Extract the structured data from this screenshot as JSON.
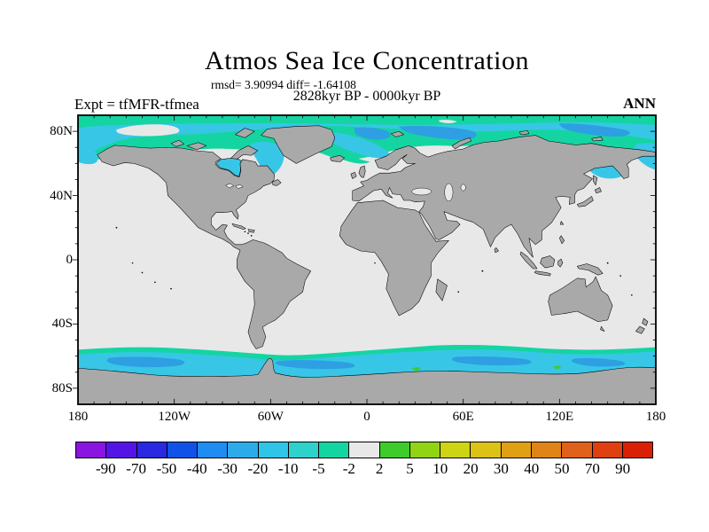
{
  "title": "Atmos Sea Ice Concentration",
  "stats_line": "rmsd= 3.90994 diff= -1.64108",
  "period_line": "2828kyr BP - 0000kyr BP",
  "experiment_label": "Expt = tfMFR-tfmea",
  "season_label": "ANN",
  "map": {
    "lat_tick_labels": [
      "80N",
      "40N",
      "0",
      "40S",
      "80S"
    ],
    "lat_tick_values": [
      80,
      40,
      0,
      -40,
      -80
    ],
    "lon_tick_labels": [
      "180",
      "120W",
      "60W",
      "0",
      "60E",
      "120E",
      "180"
    ],
    "lon_tick_values": [
      -180,
      -120,
      -60,
      0,
      60,
      120,
      180
    ],
    "land_color": "#a9a9a9",
    "no_change_color": "#e8e8e8",
    "decrease_weak_color": "#14d5a2",
    "decrease_moderate_color": "#38c6e6",
    "decrease_strong_color": "#2e9fe2"
  },
  "colorbar": {
    "tick_labels": [
      "-90",
      "-70",
      "-50",
      "-40",
      "-30",
      "-20",
      "-10",
      "-5",
      "-2",
      "2",
      "5",
      "10",
      "20",
      "30",
      "40",
      "50",
      "70",
      "90"
    ],
    "colors": [
      "#8a14e0",
      "#5414e6",
      "#2a28e0",
      "#0f52e8",
      "#1e8cf0",
      "#2dabe8",
      "#30c5e8",
      "#2ed2cd",
      "#14d5a2",
      "#e8e8e8",
      "#3ecc2a",
      "#90d414",
      "#ccd414",
      "#dcc214",
      "#e0a014",
      "#e08418",
      "#e0621a",
      "#de4012",
      "#da2004"
    ]
  },
  "chart_data": {
    "type": "heatmap",
    "title": "Atmos Sea Ice Concentration",
    "subtitle_stats": "rmsd= 3.90994 diff= -1.64108",
    "difference_period": "2828kyr BP - 0000kyr BP",
    "experiment": "tfMFR-tfmea",
    "season": "ANN",
    "projection": "equirectangular world map, 180W-180E, 90N-90S, gray land mask with black coastlines",
    "x_ticks": [
      "180",
      "120W",
      "60W",
      "0",
      "60E",
      "120E",
      "180"
    ],
    "y_ticks": [
      "80N",
      "40N",
      "0",
      "40S",
      "80S"
    ],
    "colorbar_levels": [
      -90,
      -70,
      -50,
      -40,
      -30,
      -20,
      -10,
      -5,
      -2,
      2,
      5,
      10,
      20,
      30,
      40,
      50,
      70,
      90
    ],
    "colorbar_colors": [
      "#8a14e0",
      "#5414e6",
      "#2a28e0",
      "#0f52e8",
      "#1e8cf0",
      "#2dabe8",
      "#30c5e8",
      "#2ed2cd",
      "#14d5a2",
      "#e8e8e8",
      "#3ecc2a",
      "#90d414",
      "#ccd214",
      "#dcc214",
      "#e0a014",
      "#e08418",
      "#e0621a",
      "#de4012",
      "#da2004"
    ],
    "legend_position": "horizontal bar below map",
    "regions": [
      {
        "area": "Arctic Ocean 70N-90N circumpolar",
        "value": "-10 to -2 (teal/cyan, sea-ice decrease)"
      },
      {
        "area": "Beaufort Sea ~78-85N, 150W-115W",
        "value": "-2 to 2 (no change, light gray patch)"
      },
      {
        "area": "Baffin Bay / Labrador Sea / Hudson Bay",
        "value": "-20 to -5 (cyan)"
      },
      {
        "area": "Nordic, Barents and Kara Seas",
        "value": "-30 to -10 (cyan with blue patches)"
      },
      {
        "area": "Sea of Okhotsk / Bering Sea",
        "value": "-20 to -5 (cyan)"
      },
      {
        "area": "Southern Ocean 55S-70S circumpolar band",
        "value": "-30 to -2 (green fringe, cyan body, blue patches)"
      },
      {
        "area": "mid and low latitude oceans",
        "value": "-2 to 2 (no change, light gray)"
      }
    ]
  }
}
